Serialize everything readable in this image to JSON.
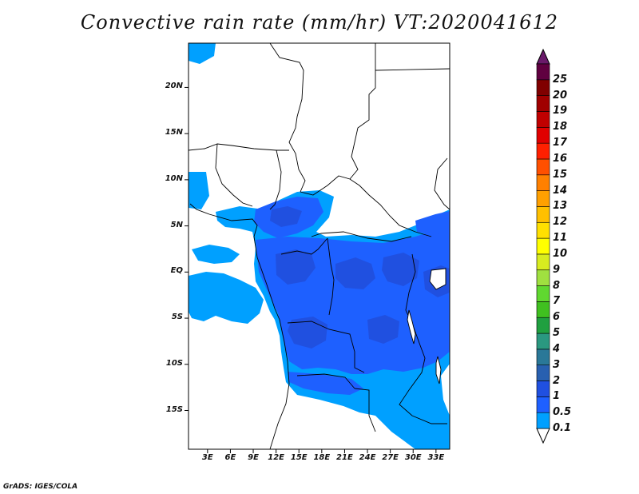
{
  "title": "Convective rain rate (mm/hr) VT:2020041612",
  "credit": "GrADS: IGES/COLA",
  "map": {
    "lat_labels": [
      "20N",
      "15N",
      "10N",
      "5N",
      "EQ",
      "5S",
      "10S",
      "15S"
    ],
    "lon_labels": [
      "3E",
      "6E",
      "9E",
      "12E",
      "15E",
      "18E",
      "21E",
      "24E",
      "27E",
      "30E",
      "33E"
    ],
    "lon_range": [
      0.5,
      34.8
    ],
    "lat_range": [
      -19.2,
      24.8
    ]
  },
  "colorbar": {
    "levels": [
      "0.1",
      "0.5",
      "1",
      "2",
      "3",
      "4",
      "5",
      "6",
      "7",
      "8",
      "9",
      "10",
      "11",
      "12",
      "13",
      "14",
      "15",
      "16",
      "17",
      "18",
      "19",
      "20",
      "25"
    ],
    "colors": [
      "#00a0ff",
      "#1e60ff",
      "#2050e0",
      "#2860b0",
      "#2a7898",
      "#2a9880",
      "#20a040",
      "#40c020",
      "#60d830",
      "#a0e040",
      "#d8ec20",
      "#ffff00",
      "#ffe000",
      "#ffc000",
      "#ffa000",
      "#ff8000",
      "#ff5000",
      "#ff2000",
      "#e00000",
      "#c00000",
      "#a00000",
      "#800000",
      "#600040"
    ],
    "underflow_color": "#ffffff",
    "overflow_color": "#6a1a6a"
  },
  "rain_colors": {
    "light": "#00a0ff",
    "moderate": "#1e60ff",
    "heavy": "#2050e0"
  }
}
